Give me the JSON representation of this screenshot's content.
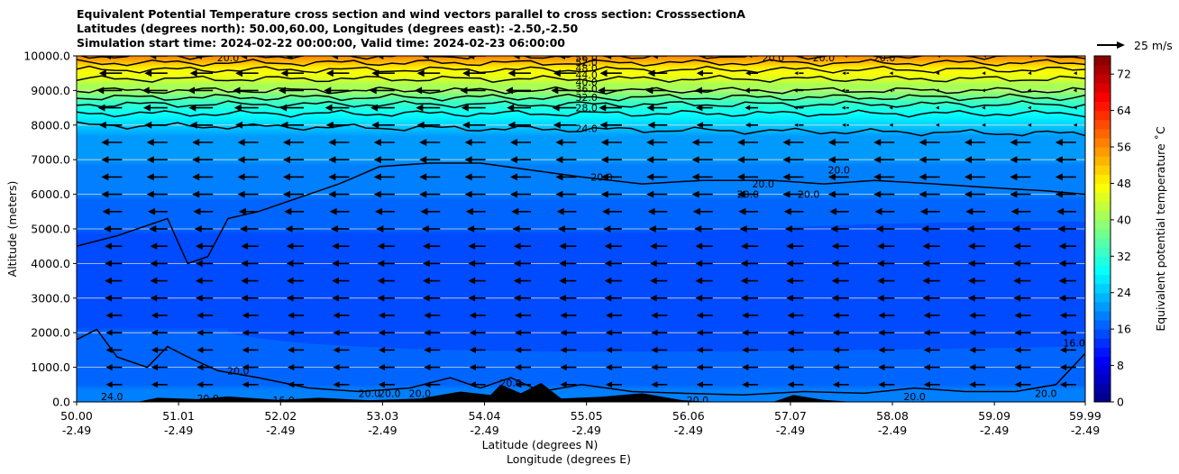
{
  "chart_data": {
    "type": "heatmap",
    "title": [
      "Equivalent Potential Temperature cross section and wind vectors parallel to cross section: CrosssectionA",
      "Latitudes (degrees north): 50.00,60.00, Longitudes (degrees east): -2.50,-2.50",
      "Simulation start time: 2024-02-22 00:00:00, Valid time: 2024-02-23 06:00:00"
    ],
    "xlabel": "Latitude (degrees N)",
    "xlabel2": "Longitude (degrees E)",
    "ylabel": "Altitude (meters)",
    "xlim": [
      50.0,
      59.99
    ],
    "ylim": [
      0,
      10000
    ],
    "x_ticks": [
      {
        "lat": "50.00",
        "lon": "-2.49",
        "v": 50.0
      },
      {
        "lat": "51.01",
        "lon": "-2.49",
        "v": 51.01
      },
      {
        "lat": "52.02",
        "lon": "-2.49",
        "v": 52.02
      },
      {
        "lat": "53.03",
        "lon": "-2.49",
        "v": 53.03
      },
      {
        "lat": "54.04",
        "lon": "-2.49",
        "v": 54.04
      },
      {
        "lat": "55.05",
        "lon": "-2.49",
        "v": 55.05
      },
      {
        "lat": "56.06",
        "lon": "-2.49",
        "v": 56.06
      },
      {
        "lat": "57.07",
        "lon": "-2.49",
        "v": 57.07
      },
      {
        "lat": "58.08",
        "lon": "-2.49",
        "v": 58.08
      },
      {
        "lat": "59.09",
        "lon": "-2.49",
        "v": 59.09
      },
      {
        "lat": "59.99",
        "lon": "-2.49",
        "v": 59.99
      }
    ],
    "y_ticks": [
      {
        "label": "0.0",
        "v": 0
      },
      {
        "label": "1000.0",
        "v": 1000
      },
      {
        "label": "2000.0",
        "v": 2000
      },
      {
        "label": "3000.0",
        "v": 3000
      },
      {
        "label": "4000.0",
        "v": 4000
      },
      {
        "label": "5000.0",
        "v": 5000
      },
      {
        "label": "6000.0",
        "v": 6000
      },
      {
        "label": "7000.0",
        "v": 7000
      },
      {
        "label": "8000.0",
        "v": 8000
      },
      {
        "label": "9000.0",
        "v": 9000
      },
      {
        "label": "10000.0",
        "v": 10000
      }
    ],
    "grid": "horizontal",
    "colorbar": {
      "label": "Equivalent potential temperature ˚C",
      "min": 0,
      "max": 76,
      "ticks": [
        {
          "label": "0",
          "v": 0
        },
        {
          "label": "8",
          "v": 8
        },
        {
          "label": "16",
          "v": 16
        },
        {
          "label": "24",
          "v": 24
        },
        {
          "label": "32",
          "v": 32
        },
        {
          "label": "40",
          "v": 40
        },
        {
          "label": "48",
          "v": 48
        },
        {
          "label": "56",
          "v": 56
        },
        {
          "label": "64",
          "v": 64
        },
        {
          "label": "72",
          "v": 72
        }
      ]
    },
    "wind_key": {
      "label": "25 m/s"
    },
    "theta_profile": [
      {
        "alt": 0,
        "value": 19
      },
      {
        "alt": 500,
        "value": 17.5
      },
      {
        "alt": 1000,
        "value": 17
      },
      {
        "alt": 2000,
        "value": 16
      },
      {
        "alt": 3000,
        "value": 15
      },
      {
        "alt": 4000,
        "value": 15
      },
      {
        "alt": 5000,
        "value": 16
      },
      {
        "alt": 6000,
        "value": 18
      },
      {
        "alt": 7000,
        "value": 20
      },
      {
        "alt": 7500,
        "value": 21
      },
      {
        "alt": 8000,
        "value": 24
      },
      {
        "alt": 8500,
        "value": 30
      },
      {
        "alt": 9000,
        "value": 40
      },
      {
        "alt": 9500,
        "value": 46
      },
      {
        "alt": 10000,
        "value": 56
      }
    ],
    "contour_levels": [
      20,
      24,
      28,
      32,
      36,
      40,
      44,
      48,
      52,
      56
    ],
    "contour_labels": [
      {
        "text": "24.0",
        "lat": 55.05,
        "alt": 7900
      },
      {
        "text": "28.0",
        "lat": 55.05,
        "alt": 8500
      },
      {
        "text": "32.0",
        "lat": 55.05,
        "alt": 8800
      },
      {
        "text": "36.0",
        "lat": 55.05,
        "alt": 9050
      },
      {
        "text": "40.0",
        "lat": 55.05,
        "alt": 9250
      },
      {
        "text": "44.0",
        "lat": 55.05,
        "alt": 9450
      },
      {
        "text": "48.0",
        "lat": 55.05,
        "alt": 9650
      },
      {
        "text": "52.0",
        "lat": 55.05,
        "alt": 9820
      },
      {
        "text": "56.0",
        "lat": 55.05,
        "alt": 9950
      },
      {
        "text": "20.0",
        "lat": 55.2,
        "alt": 6500
      },
      {
        "text": "20.0",
        "lat": 56.8,
        "alt": 6300
      },
      {
        "text": "20.0",
        "lat": 57.25,
        "alt": 6000
      },
      {
        "text": "20.0",
        "lat": 56.65,
        "alt": 6000
      },
      {
        "text": "20.0",
        "lat": 57.55,
        "alt": 6700
      },
      {
        "text": "20.0",
        "lat": 51.6,
        "alt": 900
      },
      {
        "text": "20.0",
        "lat": 52.9,
        "alt": 250
      },
      {
        "text": "20.0",
        "lat": 53.1,
        "alt": 250
      },
      {
        "text": "20.0",
        "lat": 53.4,
        "alt": 250
      },
      {
        "text": "20.0",
        "lat": 54.3,
        "alt": 550
      },
      {
        "text": "20.0",
        "lat": 56.15,
        "alt": 50
      },
      {
        "text": "20.0",
        "lat": 58.3,
        "alt": 150
      },
      {
        "text": "20.0",
        "lat": 59.6,
        "alt": 250
      },
      {
        "text": "24.0",
        "lat": 50.35,
        "alt": 150
      },
      {
        "text": "20.0",
        "lat": 51.3,
        "alt": 100
      },
      {
        "text": "16.0",
        "lat": 52.05,
        "alt": 50
      },
      {
        "text": "16.0",
        "lat": 59.88,
        "alt": 1700
      },
      {
        "text": "20.0",
        "lat": 51.5,
        "alt": 9950
      },
      {
        "text": "20.0",
        "lat": 56.9,
        "alt": 9950
      },
      {
        "text": "20.0",
        "lat": 57.4,
        "alt": 9950
      },
      {
        "text": "20.0",
        "lat": 58.0,
        "alt": 9950
      }
    ],
    "contour_20_boundary": [
      {
        "lat": 50.0,
        "alt": 4500
      },
      {
        "lat": 50.4,
        "alt": 4800
      },
      {
        "lat": 50.9,
        "alt": 5300
      },
      {
        "lat": 51.1,
        "alt": 4000
      },
      {
        "lat": 51.3,
        "alt": 4200
      },
      {
        "lat": 51.5,
        "alt": 5300
      },
      {
        "lat": 51.8,
        "alt": 5500
      },
      {
        "lat": 52.2,
        "alt": 5900
      },
      {
        "lat": 52.6,
        "alt": 6300
      },
      {
        "lat": 53.0,
        "alt": 6800
      },
      {
        "lat": 53.5,
        "alt": 6900
      },
      {
        "lat": 54.0,
        "alt": 6900
      },
      {
        "lat": 54.5,
        "alt": 6700
      },
      {
        "lat": 55.0,
        "alt": 6500
      },
      {
        "lat": 55.6,
        "alt": 6300
      },
      {
        "lat": 56.2,
        "alt": 6400
      },
      {
        "lat": 56.9,
        "alt": 6400
      },
      {
        "lat": 57.4,
        "alt": 6300
      },
      {
        "lat": 57.9,
        "alt": 6400
      },
      {
        "lat": 58.5,
        "alt": 6300
      },
      {
        "lat": 59.0,
        "alt": 6200
      },
      {
        "lat": 59.6,
        "alt": 6100
      },
      {
        "lat": 59.99,
        "alt": 6000
      }
    ],
    "contour_20_surface": [
      {
        "lat": 50.0,
        "alt": 1800
      },
      {
        "lat": 50.2,
        "alt": 2100
      },
      {
        "lat": 50.4,
        "alt": 1300
      },
      {
        "lat": 50.7,
        "alt": 1000
      },
      {
        "lat": 50.9,
        "alt": 1600
      },
      {
        "lat": 51.1,
        "alt": 1300
      },
      {
        "lat": 51.4,
        "alt": 900
      },
      {
        "lat": 51.8,
        "alt": 700
      },
      {
        "lat": 52.3,
        "alt": 400
      },
      {
        "lat": 52.8,
        "alt": 300
      },
      {
        "lat": 53.3,
        "alt": 400
      },
      {
        "lat": 53.7,
        "alt": 700
      },
      {
        "lat": 54.0,
        "alt": 400
      },
      {
        "lat": 54.3,
        "alt": 700
      },
      {
        "lat": 54.6,
        "alt": 300
      },
      {
        "lat": 55.0,
        "alt": 500
      },
      {
        "lat": 55.5,
        "alt": 300
      },
      {
        "lat": 56.0,
        "alt": 250
      },
      {
        "lat": 56.6,
        "alt": 200
      },
      {
        "lat": 57.2,
        "alt": 300
      },
      {
        "lat": 57.8,
        "alt": 250
      },
      {
        "lat": 58.3,
        "alt": 400
      },
      {
        "lat": 58.8,
        "alt": 300
      },
      {
        "lat": 59.3,
        "alt": 300
      },
      {
        "lat": 59.7,
        "alt": 500
      },
      {
        "lat": 59.99,
        "alt": 1400
      }
    ],
    "terrain": [
      {
        "lat": 50.0,
        "alt": 0
      },
      {
        "lat": 50.6,
        "alt": 0
      },
      {
        "lat": 50.8,
        "alt": 120
      },
      {
        "lat": 51.2,
        "alt": 80
      },
      {
        "lat": 51.5,
        "alt": 160
      },
      {
        "lat": 52.0,
        "alt": 60
      },
      {
        "lat": 52.4,
        "alt": 120
      },
      {
        "lat": 52.9,
        "alt": 50
      },
      {
        "lat": 53.4,
        "alt": 100
      },
      {
        "lat": 53.8,
        "alt": 300
      },
      {
        "lat": 54.1,
        "alt": 200
      },
      {
        "lat": 54.2,
        "alt": 500
      },
      {
        "lat": 54.4,
        "alt": 250
      },
      {
        "lat": 54.6,
        "alt": 550
      },
      {
        "lat": 54.8,
        "alt": 100
      },
      {
        "lat": 55.2,
        "alt": 150
      },
      {
        "lat": 55.6,
        "alt": 250
      },
      {
        "lat": 56.0,
        "alt": 50
      },
      {
        "lat": 56.3,
        "alt": 0
      },
      {
        "lat": 56.9,
        "alt": 0
      },
      {
        "lat": 57.1,
        "alt": 200
      },
      {
        "lat": 57.4,
        "alt": 60
      },
      {
        "lat": 57.7,
        "alt": 0
      },
      {
        "lat": 59.99,
        "alt": 0
      }
    ],
    "wind_rows": [
      {
        "alt": 500,
        "u": -14
      },
      {
        "alt": 1000,
        "u": -14
      },
      {
        "alt": 1500,
        "u": -14
      },
      {
        "alt": 2000,
        "u": -14
      },
      {
        "alt": 2500,
        "u": -14
      },
      {
        "alt": 3000,
        "u": -15
      },
      {
        "alt": 3500,
        "u": -15
      },
      {
        "alt": 4000,
        "u": -15
      },
      {
        "alt": 4500,
        "u": -15
      },
      {
        "alt": 5000,
        "u": -16
      },
      {
        "alt": 5500,
        "u": -17
      },
      {
        "alt": 6000,
        "u": -18
      },
      {
        "alt": 6500,
        "u": -18
      },
      {
        "alt": 7000,
        "u": -18
      },
      {
        "alt": 7500,
        "u": -18
      },
      {
        "alt": 8000,
        "u": -20
      },
      {
        "alt": 8500,
        "u": -21
      },
      {
        "alt": 9000,
        "u": -22
      },
      {
        "alt": 9500,
        "u": -20
      },
      {
        "alt": 10000,
        "u": -16
      }
    ],
    "wind_columns": [
      50.0,
      50.45,
      50.9,
      51.35,
      51.8,
      52.25,
      52.7,
      53.15,
      53.6,
      54.05,
      54.5,
      54.95,
      55.4,
      55.85,
      56.3,
      56.75,
      57.2,
      57.65,
      58.1,
      58.55,
      59.0,
      59.45,
      59.9
    ],
    "wind_column_decay": [
      1.0,
      1.0,
      1.0,
      1.0,
      1.0,
      1.0,
      1.0,
      1.0,
      1.0,
      1.0,
      1.0,
      1.0,
      0.95,
      0.85,
      0.7,
      0.55,
      0.4,
      0.3,
      0.22,
      0.18,
      0.15,
      0.13,
      0.12
    ]
  }
}
